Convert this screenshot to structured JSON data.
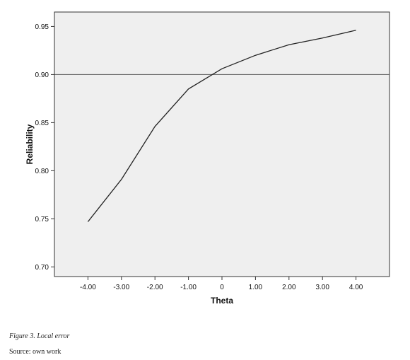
{
  "chart_data": {
    "type": "line",
    "xlabel": "Theta",
    "ylabel": "Reliability",
    "x": [
      -4,
      -3,
      -2,
      -1,
      0,
      1,
      2,
      3,
      4
    ],
    "series": [
      {
        "values": [
          0.747,
          0.791,
          0.846,
          0.885,
          0.906,
          0.92,
          0.931,
          0.938,
          0.946
        ]
      }
    ],
    "xlim": [
      -5,
      5
    ],
    "ylim": [
      0.69,
      0.965
    ],
    "x_ticks": [
      -4,
      -3,
      -2,
      -1,
      0,
      1,
      2,
      3,
      4
    ],
    "x_tick_labels": [
      "-4.00",
      "-3.00",
      "-2.00",
      "-1.00",
      "0",
      "1.00",
      "2.00",
      "3.00",
      "4.00"
    ],
    "y_ticks": [
      0.7,
      0.75,
      0.8,
      0.85,
      0.9,
      0.95
    ],
    "y_tick_labels": [
      "0.70",
      "0.75",
      "0.80",
      "0.85",
      "0.90",
      "0.95"
    ],
    "reference_line_y": 0.9,
    "grid": false,
    "legend": "none",
    "colors": {
      "plot_background": "#efefef",
      "line": "#222222",
      "axis": "#333333",
      "reference_line": "#555555"
    }
  },
  "caption": {
    "figure": "Figure 3. Local error",
    "source": "Source: own work"
  }
}
